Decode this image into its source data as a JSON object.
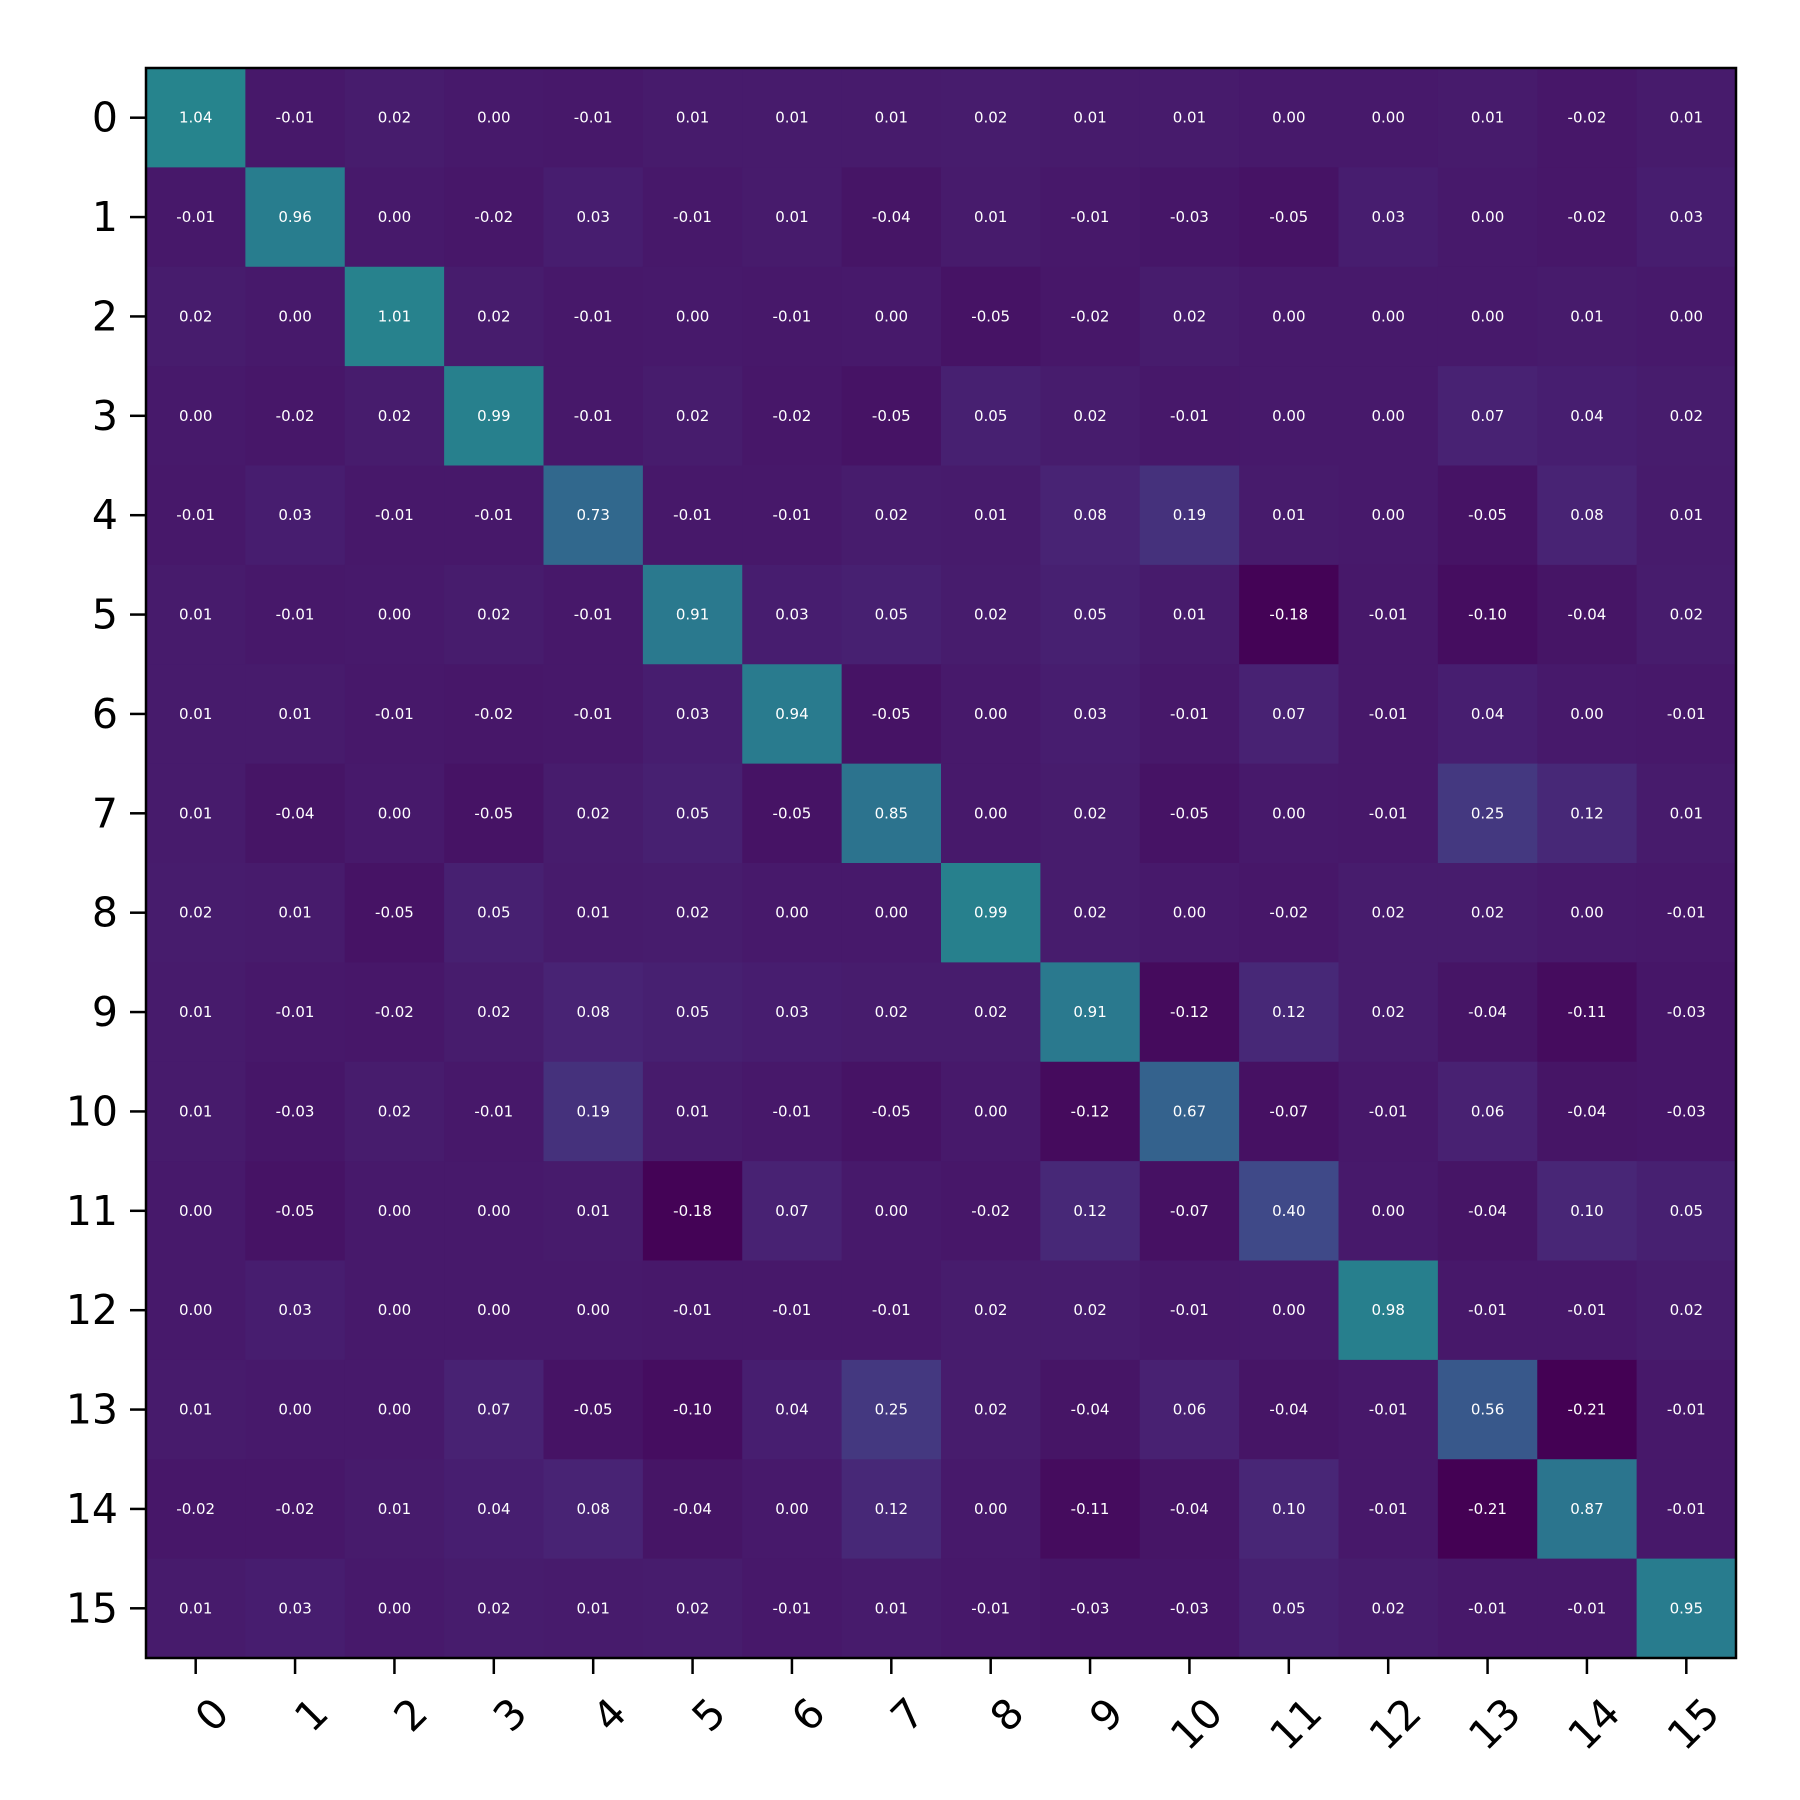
{
  "chart_data": {
    "type": "heatmap",
    "title": "",
    "xlabel": "",
    "ylabel": "",
    "x_categories": [
      "0",
      "1",
      "2",
      "3",
      "4",
      "5",
      "6",
      "7",
      "8",
      "9",
      "10",
      "11",
      "12",
      "13",
      "14",
      "15"
    ],
    "y_categories": [
      "0",
      "1",
      "2",
      "3",
      "4",
      "5",
      "6",
      "7",
      "8",
      "9",
      "10",
      "11",
      "12",
      "13",
      "14",
      "15"
    ],
    "colormap": "viridis",
    "color_range": [
      -0.2,
      2.0
    ],
    "cell_text_color": "#ffffff",
    "x_tick_rotation_deg": 45,
    "grid": false,
    "values": [
      [
        1.04,
        -0.01,
        0.02,
        0.0,
        -0.01,
        0.01,
        0.01,
        0.01,
        0.02,
        0.01,
        0.01,
        0.0,
        0.0,
        0.01,
        -0.02,
        0.01
      ],
      [
        -0.01,
        0.96,
        0.0,
        -0.02,
        0.03,
        -0.01,
        0.01,
        -0.04,
        0.01,
        -0.01,
        -0.03,
        -0.05,
        0.03,
        -0.0,
        -0.02,
        0.03
      ],
      [
        0.02,
        0.0,
        1.01,
        0.02,
        -0.01,
        0.0,
        -0.01,
        -0.0,
        -0.05,
        -0.02,
        0.02,
        0.0,
        -0.0,
        0.0,
        0.01,
        -0.0
      ],
      [
        0.0,
        -0.02,
        0.02,
        0.99,
        -0.01,
        0.02,
        -0.02,
        -0.05,
        0.05,
        0.02,
        -0.01,
        -0.0,
        -0.0,
        0.07,
        0.04,
        0.02
      ],
      [
        -0.01,
        0.03,
        -0.01,
        -0.01,
        0.73,
        -0.01,
        -0.01,
        0.02,
        0.01,
        0.08,
        0.19,
        0.01,
        0.0,
        -0.05,
        0.08,
        0.01
      ],
      [
        0.01,
        -0.01,
        0.0,
        0.02,
        -0.01,
        0.91,
        0.03,
        0.05,
        0.02,
        0.05,
        0.01,
        -0.18,
        -0.01,
        -0.1,
        -0.04,
        0.02
      ],
      [
        0.01,
        0.01,
        -0.01,
        -0.02,
        -0.01,
        0.03,
        0.94,
        -0.05,
        -0.0,
        0.03,
        -0.01,
        0.07,
        -0.01,
        0.04,
        -0.0,
        -0.01
      ],
      [
        0.01,
        -0.04,
        -0.0,
        -0.05,
        0.02,
        0.05,
        -0.05,
        0.85,
        0.0,
        0.02,
        -0.05,
        -0.0,
        -0.01,
        0.25,
        0.12,
        0.01
      ],
      [
        0.02,
        0.01,
        -0.05,
        0.05,
        0.01,
        0.02,
        -0.0,
        0.0,
        0.99,
        0.02,
        0.0,
        -0.02,
        0.02,
        0.02,
        -0.0,
        -0.01
      ],
      [
        0.01,
        -0.01,
        -0.02,
        0.02,
        0.08,
        0.05,
        0.03,
        0.02,
        0.02,
        0.91,
        -0.12,
        0.12,
        0.02,
        -0.04,
        -0.11,
        -0.03
      ],
      [
        0.01,
        -0.03,
        0.02,
        -0.01,
        0.19,
        0.01,
        -0.01,
        -0.05,
        0.0,
        -0.12,
        0.67,
        -0.07,
        -0.01,
        0.06,
        -0.04,
        -0.03
      ],
      [
        0.0,
        -0.05,
        0.0,
        -0.0,
        0.01,
        -0.18,
        0.07,
        -0.0,
        -0.02,
        0.12,
        -0.07,
        0.4,
        0.0,
        -0.04,
        0.1,
        0.05
      ],
      [
        0.0,
        0.03,
        -0.0,
        -0.0,
        0.0,
        -0.01,
        -0.01,
        -0.01,
        0.02,
        0.02,
        -0.01,
        0.0,
        0.98,
        -0.01,
        -0.01,
        0.02
      ],
      [
        0.01,
        -0.0,
        0.0,
        0.07,
        -0.05,
        -0.1,
        0.04,
        0.25,
        0.02,
        -0.04,
        0.06,
        -0.04,
        -0.01,
        0.56,
        -0.21,
        -0.01
      ],
      [
        -0.02,
        -0.02,
        0.01,
        0.04,
        0.08,
        -0.04,
        -0.0,
        0.12,
        -0.0,
        -0.11,
        -0.04,
        0.1,
        -0.01,
        -0.21,
        0.87,
        -0.01
      ],
      [
        0.01,
        0.03,
        -0.0,
        0.02,
        0.01,
        0.02,
        -0.01,
        0.01,
        -0.01,
        -0.03,
        -0.03,
        0.05,
        0.02,
        -0.01,
        -0.01,
        0.95
      ]
    ]
  }
}
